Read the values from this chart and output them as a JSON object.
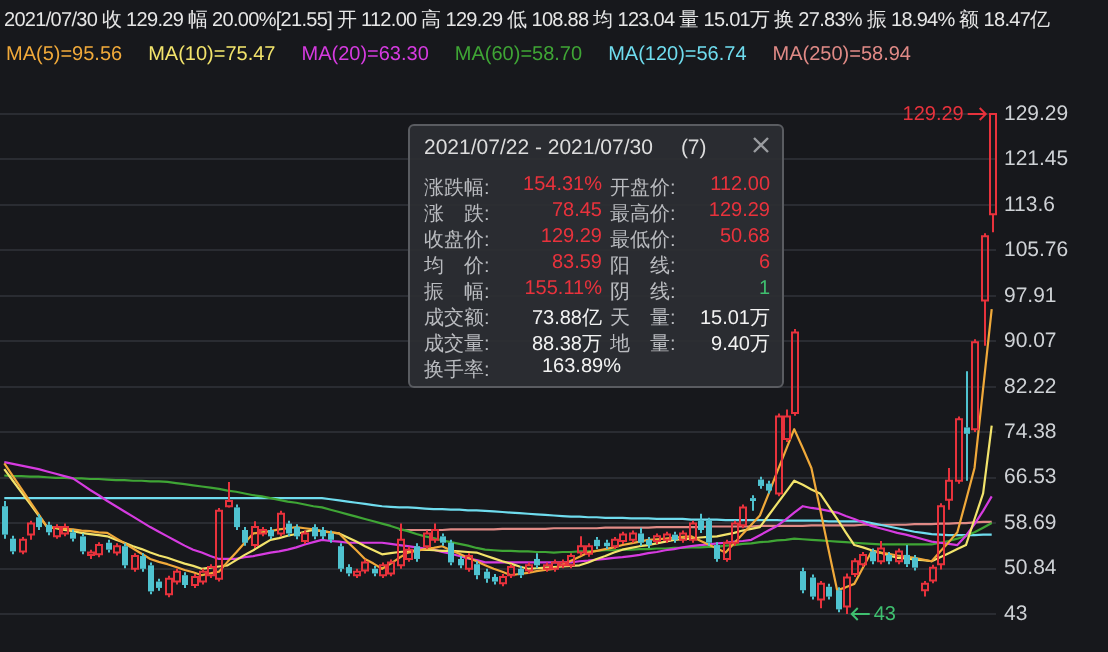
{
  "chart_data": {
    "type": "candlestick",
    "categories": [
      null,
      null,
      null,
      null,
      null,
      null,
      null,
      null,
      null,
      null,
      null,
      null,
      null,
      null,
      null,
      null,
      null,
      null,
      null,
      null,
      null,
      null,
      null,
      null,
      null,
      null,
      null,
      null,
      null,
      null,
      null,
      null,
      null,
      null,
      null,
      null,
      null,
      null,
      null,
      null,
      null,
      null,
      null,
      null,
      null,
      null,
      null,
      null,
      null,
      null,
      null,
      null,
      null,
      null,
      null,
      null,
      null,
      null,
      null,
      null,
      null,
      null,
      null,
      null,
      null,
      null,
      null,
      null,
      null,
      null,
      null,
      null,
      null,
      null,
      null,
      null,
      null,
      null,
      null,
      null,
      null,
      null,
      null,
      null,
      null,
      null,
      null,
      null,
      null,
      null,
      null,
      null,
      null,
      null,
      null,
      null,
      null,
      null,
      null,
      null,
      null,
      null,
      null,
      null,
      null,
      null,
      null,
      null,
      null,
      null,
      null,
      null,
      null,
      null,
      null,
      null
    ],
    "ylim": [
      43,
      129.29
    ],
    "yticks": [
      43,
      50.84,
      58.69,
      66.53,
      74.38,
      82.22,
      90.07,
      97.91,
      105.76,
      113.6,
      121.45,
      129.29
    ],
    "grid": "y",
    "tick_labels": "y",
    "legend": "top left",
    "annotations": [
      "2021/07/30 收 129.29 幅 20.00%[21.55] 开 112.00 高 129.29 低 108.88 均 123.04 量 15.01万 换 27.83% 振 18.94% 额 18.47亿",
      "2021/07/22 - 2021/07/30",
      "(7)",
      "涨跌幅:",
      "154.31%",
      "开盘价:",
      "112.00",
      "涨　跌:",
      "78.45",
      "最高价:",
      "129.29",
      "收盘价:",
      "129.29",
      "最低价:",
      "50.68",
      "均　价:",
      "83.59",
      "阳　线:",
      "6",
      "振　幅:",
      "155.11%",
      "阴　线:",
      "1",
      "成交额:",
      "73.88亿",
      "天　量:",
      "15.01万",
      "成交量:",
      "88.38万",
      "地　量:",
      "9.40万",
      "换手率:",
      "163.89%",
      "129.29",
      "43"
    ],
    "series": [
      {
        "type": "candlestick",
        "ohlc": [
          [
            61.6,
            62.5,
            56.0,
            56.7
          ],
          [
            56.0,
            56.5,
            53.3,
            53.8
          ],
          [
            53.8,
            56.3,
            53.3,
            55.8
          ],
          [
            56.7,
            59.1,
            55.8,
            58.6
          ],
          [
            59.7,
            60.2,
            57.5,
            58.0
          ],
          [
            58.4,
            58.9,
            56.6,
            57.1
          ],
          [
            56.4,
            58.5,
            56.0,
            58.0
          ],
          [
            56.9,
            58.6,
            56.4,
            58.0
          ],
          [
            57.1,
            57.6,
            55.5,
            56.0
          ],
          [
            56.4,
            56.9,
            53.3,
            53.8
          ],
          [
            53.2,
            54.1,
            52.5,
            53.6
          ],
          [
            53.3,
            55.4,
            52.8,
            54.9
          ],
          [
            55.3,
            55.8,
            53.6,
            54.1
          ],
          [
            53.6,
            55.2,
            53.1,
            54.7
          ],
          [
            54.7,
            55.2,
            50.9,
            51.4
          ],
          [
            50.8,
            53.5,
            50.3,
            53.0
          ],
          [
            53.0,
            53.5,
            50.3,
            50.8
          ],
          [
            51.4,
            51.9,
            46.4,
            46.9
          ],
          [
            48.6,
            49.1,
            47.0,
            47.5
          ],
          [
            46.4,
            49.6,
            45.9,
            49.1
          ],
          [
            48.6,
            50.8,
            48.1,
            50.3
          ],
          [
            49.7,
            50.2,
            47.5,
            48.0
          ],
          [
            48.0,
            49.9,
            47.5,
            49.4
          ],
          [
            48.6,
            50.8,
            48.1,
            50.3
          ],
          [
            49.7,
            51.6,
            49.2,
            51.1
          ],
          [
            49.1,
            61.3,
            48.6,
            60.8
          ],
          [
            61.6,
            65.8,
            61.4,
            62.5
          ],
          [
            61.4,
            61.9,
            57.5,
            58.0
          ],
          [
            57.5,
            58.0,
            54.8,
            55.3
          ],
          [
            54.9,
            59.0,
            54.4,
            58.0
          ],
          [
            56.9,
            58.0,
            56.4,
            57.5
          ],
          [
            57.5,
            58.0,
            55.9,
            56.4
          ],
          [
            56.9,
            60.8,
            56.4,
            60.3
          ],
          [
            58.6,
            59.1,
            56.4,
            56.9
          ],
          [
            58.0,
            58.5,
            55.9,
            56.4
          ],
          [
            55.6,
            57.4,
            55.1,
            56.9
          ],
          [
            58.0,
            58.5,
            55.9,
            56.4
          ],
          [
            57.5,
            58.0,
            55.9,
            56.4
          ],
          [
            56.9,
            57.4,
            55.3,
            55.8
          ],
          [
            54.7,
            55.2,
            50.3,
            50.8
          ],
          [
            51.1,
            51.6,
            49.5,
            50.0
          ],
          [
            49.7,
            50.8,
            49.2,
            50.3
          ],
          [
            50.5,
            52.4,
            50.0,
            51.9
          ],
          [
            50.8,
            51.3,
            49.5,
            50.0
          ],
          [
            49.7,
            51.9,
            49.2,
            51.4
          ],
          [
            50.0,
            52.4,
            49.5,
            51.9
          ],
          [
            51.4,
            58.6,
            50.8,
            55.8
          ],
          [
            52.5,
            54.6,
            52.0,
            54.1
          ],
          [
            54.7,
            55.2,
            52.0,
            52.5
          ],
          [
            54.7,
            57.4,
            54.2,
            56.9
          ],
          [
            55.8,
            58.6,
            55.3,
            57.5
          ],
          [
            56.4,
            56.9,
            54.8,
            55.3
          ],
          [
            55.3,
            55.8,
            51.4,
            51.9
          ],
          [
            52.5,
            53.0,
            50.9,
            51.4
          ],
          [
            50.8,
            53.5,
            50.3,
            53.0
          ],
          [
            51.6,
            52.1,
            49.0,
            49.7
          ],
          [
            50.3,
            50.8,
            48.4,
            49.1
          ],
          [
            49.4,
            49.9,
            48.1,
            48.6
          ],
          [
            48.3,
            49.9,
            47.8,
            49.4
          ],
          [
            49.7,
            51.6,
            49.2,
            51.1
          ],
          [
            50.8,
            51.3,
            49.2,
            49.7
          ],
          [
            50.5,
            51.9,
            50.0,
            51.4
          ],
          [
            52.5,
            53.5,
            50.9,
            51.4
          ],
          [
            50.8,
            51.9,
            50.3,
            51.4
          ],
          [
            50.8,
            52.4,
            50.3,
            51.9
          ],
          [
            51.4,
            52.4,
            50.9,
            51.9
          ],
          [
            51.4,
            53.5,
            50.9,
            53.0
          ],
          [
            53.6,
            56.4,
            53.1,
            54.7
          ],
          [
            53.4,
            55.2,
            52.9,
            54.7
          ],
          [
            55.8,
            56.3,
            54.2,
            54.7
          ],
          [
            55.3,
            55.8,
            54.2,
            54.7
          ],
          [
            54.7,
            56.3,
            54.2,
            55.8
          ],
          [
            55.6,
            57.2,
            55.1,
            56.7
          ],
          [
            55.8,
            57.4,
            55.3,
            56.9
          ],
          [
            56.9,
            57.9,
            54.8,
            55.3
          ],
          [
            55.8,
            56.3,
            54.4,
            54.9
          ],
          [
            55.6,
            56.9,
            55.1,
            56.4
          ],
          [
            55.8,
            57.2,
            55.3,
            56.7
          ],
          [
            56.7,
            57.2,
            55.3,
            55.8
          ],
          [
            55.8,
            57.4,
            55.3,
            56.9
          ],
          [
            55.8,
            59.1,
            55.3,
            58.6
          ],
          [
            59.1,
            60.3,
            57.0,
            57.5
          ],
          [
            59.1,
            59.6,
            54.8,
            55.3
          ],
          [
            54.9,
            55.4,
            52.0,
            52.5
          ],
          [
            52.5,
            55.8,
            52.0,
            55.3
          ],
          [
            55.3,
            59.1,
            54.8,
            58.6
          ],
          [
            58.3,
            61.9,
            57.8,
            61.4
          ],
          [
            63.0,
            63.5,
            60.8,
            62.5
          ],
          [
            66.2,
            66.7,
            64.6,
            65.1
          ],
          [
            65.5,
            66.0,
            63.8,
            64.3
          ],
          [
            63.8,
            77.6,
            63.3,
            77.1
          ],
          [
            73.2,
            78.3,
            72.7,
            77.1
          ],
          [
            77.7,
            92.2,
            77.2,
            91.6
          ],
          [
            50.4,
            51.0,
            46.6,
            47.1
          ],
          [
            49.3,
            49.8,
            45.5,
            46.0
          ],
          [
            45.5,
            48.7,
            44.0,
            48.2
          ],
          [
            47.7,
            48.2,
            45.5,
            46.0
          ],
          [
            47.1,
            47.6,
            43.3,
            43.8
          ],
          [
            44.3,
            50.0,
            43.0,
            49.3
          ],
          [
            49.9,
            52.6,
            49.4,
            52.1
          ],
          [
            51.6,
            53.7,
            51.1,
            53.2
          ],
          [
            53.8,
            54.3,
            51.6,
            52.1
          ],
          [
            52.1,
            55.6,
            51.6,
            54.3
          ],
          [
            53.2,
            53.7,
            51.6,
            52.1
          ],
          [
            52.1,
            54.3,
            51.6,
            53.8
          ],
          [
            53.2,
            54.9,
            51.1,
            51.6
          ],
          [
            52.7,
            53.2,
            50.5,
            51.0
          ],
          [
            47.1,
            48.7,
            46.0,
            48.2
          ],
          [
            48.8,
            51.5,
            48.3,
            51.0
          ],
          [
            51.6,
            62.1,
            50.68,
            61.6
          ],
          [
            62.7,
            68.2,
            61.0,
            66.0
          ],
          [
            66.0,
            77.1,
            65.5,
            76.6
          ],
          [
            75.2,
            84.9,
            66.0,
            74.1
          ],
          [
            74.9,
            90.4,
            74.4,
            89.9
          ],
          [
            97.1,
            108.7,
            89.3,
            108.2
          ],
          [
            112.0,
            129.29,
            108.88,
            129.29
          ]
        ],
        "colors": [
          "#4fc3d0",
          "#4fc3d0",
          "#e8323c",
          "#e8323c",
          "#4fc3d0",
          "#4fc3d0",
          "#e8323c",
          "#e8323c",
          "#4fc3d0",
          "#4fc3d0",
          "#e8323c",
          "#e8323c",
          "#4fc3d0",
          "#e8323c",
          "#4fc3d0",
          "#e8323c",
          "#4fc3d0",
          "#4fc3d0",
          "#4fc3d0",
          "#e8323c",
          "#e8323c",
          "#4fc3d0",
          "#e8323c",
          "#e8323c",
          "#e8323c",
          "#e8323c",
          "#e8323c",
          "#4fc3d0",
          "#4fc3d0",
          "#e8323c",
          "#e8323c",
          "#4fc3d0",
          "#e8323c",
          "#4fc3d0",
          "#4fc3d0",
          "#e8323c",
          "#4fc3d0",
          "#4fc3d0",
          "#4fc3d0",
          "#4fc3d0",
          "#4fc3d0",
          "#e8323c",
          "#e8323c",
          "#4fc3d0",
          "#e8323c",
          "#e8323c",
          "#e8323c",
          "#e8323c",
          "#4fc3d0",
          "#e8323c",
          "#e8323c",
          "#4fc3d0",
          "#4fc3d0",
          "#4fc3d0",
          "#e8323c",
          "#4fc3d0",
          "#4fc3d0",
          "#4fc3d0",
          "#e8323c",
          "#e8323c",
          "#4fc3d0",
          "#e8323c",
          "#4fc3d0",
          "#e8323c",
          "#e8323c",
          "#e8323c",
          "#e8323c",
          "#e8323c",
          "#e8323c",
          "#4fc3d0",
          "#4fc3d0",
          "#e8323c",
          "#e8323c",
          "#e8323c",
          "#4fc3d0",
          "#4fc3d0",
          "#e8323c",
          "#e8323c",
          "#4fc3d0",
          "#e8323c",
          "#e8323c",
          "#4fc3d0",
          "#4fc3d0",
          "#4fc3d0",
          "#e8323c",
          "#e8323c",
          "#e8323c",
          "#4fc3d0",
          "#4fc3d0",
          "#4fc3d0",
          "#e8323c",
          "#e8323c",
          "#e8323c",
          "#4fc3d0",
          "#4fc3d0",
          "#e8323c",
          "#4fc3d0",
          "#4fc3d0",
          "#e8323c",
          "#e8323c",
          "#e8323c",
          "#4fc3d0",
          "#e8323c",
          "#4fc3d0",
          "#e8323c",
          "#4fc3d0",
          "#4fc3d0",
          "#e8323c",
          "#e8323c",
          "#e8323c",
          "#e8323c",
          "#e8323c",
          "#4fc3d0",
          "#e8323c",
          "#e8323c",
          "#e8323c"
        ]
      },
      {
        "type": "line",
        "name": "MA(5)=95.56",
        "color": "#f0a93a",
        "values": [
          69.0,
          66.8,
          64.6,
          62.4,
          60.2,
          58.0,
          57.9,
          57.7,
          57.6,
          57.4,
          57.3,
          57.1,
          57.0,
          56.1,
          55.2,
          54.3,
          53.4,
          52.5,
          52.0,
          51.6,
          51.1,
          50.6,
          50.2,
          49.7,
          50.0,
          50.3,
          52.0,
          53.6,
          55.3,
          56.9,
          57.1,
          57.3,
          57.6,
          57.8,
          58.0,
          57.8,
          57.6,
          57.3,
          57.1,
          56.9,
          55.4,
          54.0,
          52.5,
          51.7,
          50.8,
          51.7,
          52.7,
          53.6,
          53.9,
          54.2,
          54.4,
          54.7,
          54.0,
          53.4,
          52.7,
          52.1,
          51.4,
          50.8,
          50.3,
          49.7,
          49.9,
          50.1,
          50.4,
          50.6,
          50.8,
          51.5,
          52.2,
          52.9,
          53.6,
          53.9,
          54.2,
          54.5,
          54.9,
          55.2,
          55.5,
          55.8,
          55.9,
          56.0,
          56.2,
          56.3,
          56.4,
          55.7,
          55.0,
          54.3,
          53.6,
          55.2,
          56.8,
          58.4,
          60.0,
          63.7,
          67.5,
          71.2,
          74.9,
          71.6,
          68.2,
          61.2,
          54.1,
          47.1,
          47.6,
          48.2,
          51.0,
          53.8,
          53.6,
          53.4,
          53.1,
          52.9,
          52.7,
          52.4,
          52.1,
          53.8,
          55.4,
          57.1,
          62.6,
          68.2,
          81.9,
          95.6
        ]
      },
      {
        "type": "line",
        "name": "MA(10)=75.47",
        "color": "#f2e36b",
        "values": [
          68.0,
          66.0,
          64.0,
          62.0,
          60.0,
          58.0,
          57.8,
          57.5,
          57.3,
          57.0,
          56.8,
          56.6,
          56.4,
          55.8,
          55.3,
          54.7,
          54.2,
          53.6,
          53.1,
          52.7,
          52.2,
          51.7,
          51.3,
          50.8,
          51.0,
          51.2,
          51.4,
          52.3,
          53.2,
          54.0,
          54.9,
          55.8,
          56.1,
          56.5,
          56.8,
          57.2,
          57.5,
          57.3,
          57.1,
          56.9,
          56.2,
          55.5,
          54.7,
          54.0,
          53.3,
          53.5,
          53.7,
          53.8,
          54.0,
          54.1,
          54.0,
          53.9,
          53.9,
          53.8,
          53.7,
          53.6,
          53.1,
          52.6,
          52.1,
          51.7,
          51.2,
          50.8,
          50.9,
          51.0,
          51.1,
          51.2,
          51.3,
          51.4,
          51.9,
          52.5,
          53.0,
          53.6,
          54.1,
          54.4,
          54.7,
          54.9,
          55.2,
          55.5,
          55.8,
          55.9,
          56.0,
          56.2,
          56.3,
          56.4,
          56.7,
          57.0,
          57.4,
          57.7,
          58.0,
          60.0,
          62.0,
          64.0,
          66.0,
          65.3,
          64.5,
          63.8,
          61.6,
          59.4,
          57.1,
          54.9,
          54.5,
          54.0,
          53.6,
          53.1,
          52.7,
          52.6,
          52.4,
          52.3,
          52.1,
          52.8,
          53.5,
          54.2,
          54.9,
          59.4,
          63.8,
          75.5
        ]
      },
      {
        "type": "line",
        "name": "MA(20)=63.30",
        "color": "#d63be0",
        "values": [
          69.2,
          68.9,
          68.6,
          68.3,
          68.0,
          67.6,
          67.2,
          66.8,
          66.4,
          65.4,
          64.4,
          63.5,
          62.5,
          61.6,
          60.7,
          59.8,
          58.9,
          58.0,
          57.2,
          56.4,
          55.6,
          54.8,
          54.1,
          53.6,
          53.0,
          52.5,
          52.5,
          52.5,
          52.8,
          53.0,
          53.3,
          53.6,
          53.8,
          54.1,
          54.5,
          55.0,
          55.4,
          55.8,
          55.6,
          55.5,
          55.3,
          55.3,
          55.3,
          55.3,
          55.3,
          55.1,
          54.9,
          54.7,
          54.5,
          54.3,
          54.1,
          53.7,
          53.4,
          53.0,
          52.6,
          52.3,
          51.9,
          51.9,
          51.9,
          51.9,
          51.9,
          51.9,
          51.9,
          51.9,
          51.9,
          51.9,
          51.9,
          52.1,
          52.2,
          52.4,
          52.5,
          52.7,
          52.8,
          53.0,
          53.2,
          53.5,
          53.7,
          54.0,
          54.2,
          54.5,
          54.7,
          54.9,
          55.0,
          55.2,
          55.3,
          55.5,
          55.6,
          55.8,
          56.6,
          57.4,
          58.2,
          59.3,
          60.5,
          61.6,
          61.3,
          61.1,
          60.8,
          60.5,
          59.9,
          59.4,
          58.8,
          58.2,
          57.8,
          57.4,
          57.0,
          56.7,
          56.3,
          55.9,
          55.5,
          55.3,
          55.1,
          54.9,
          56.5,
          58.5,
          60.8,
          63.3
        ]
      },
      {
        "type": "line",
        "name": "MA(60)=58.70",
        "color": "#3fa535",
        "values": [
          66.9,
          66.8,
          66.8,
          66.7,
          66.7,
          66.6,
          66.5,
          66.5,
          66.4,
          66.4,
          66.3,
          66.3,
          66.2,
          66.1,
          66.1,
          66.0,
          66.0,
          65.9,
          65.9,
          65.8,
          65.6,
          65.4,
          65.2,
          65.0,
          64.8,
          64.6,
          64.3,
          64.1,
          63.8,
          63.5,
          63.3,
          63.0,
          62.7,
          62.4,
          62.2,
          61.9,
          61.6,
          61.4,
          61.0,
          60.6,
          60.2,
          59.8,
          59.4,
          59.0,
          58.6,
          58.2,
          57.7,
          57.3,
          56.8,
          56.4,
          56.1,
          55.7,
          55.4,
          55.1,
          54.8,
          54.4,
          54.1,
          54.0,
          53.9,
          53.9,
          53.8,
          53.8,
          53.7,
          53.7,
          53.6,
          53.7,
          53.7,
          53.8,
          53.8,
          53.9,
          54.0,
          54.0,
          54.1,
          54.1,
          54.2,
          54.2,
          54.3,
          54.3,
          54.4,
          54.4,
          54.5,
          54.5,
          54.6,
          54.6,
          54.8,
          54.9,
          55.1,
          55.2,
          55.4,
          55.5,
          55.7,
          55.8,
          56.0,
          55.9,
          55.8,
          55.7,
          55.6,
          55.5,
          55.4,
          55.3,
          55.2,
          55.1,
          55.0,
          55.0,
          55.0,
          55.0,
          55.0,
          55.0,
          55.0,
          55.3,
          55.6,
          56.0,
          56.5,
          57.1,
          57.9,
          58.7
        ]
      },
      {
        "type": "line",
        "name": "MA(120)=56.74",
        "color": "#6fdcee",
        "values": [
          63.0,
          63.0,
          63.0,
          63.0,
          63.0,
          63.0,
          63.0,
          63.0,
          63.0,
          63.0,
          63.0,
          63.0,
          63.0,
          63.0,
          63.0,
          63.0,
          63.0,
          63.0,
          63.0,
          63.0,
          63.0,
          63.0,
          63.0,
          63.0,
          63.0,
          63.0,
          63.0,
          63.0,
          63.0,
          63.0,
          63.0,
          63.0,
          63.0,
          63.0,
          63.0,
          63.0,
          63.0,
          63.0,
          62.8,
          62.6,
          62.4,
          62.2,
          62.0,
          61.8,
          61.6,
          61.5,
          61.4,
          61.4,
          61.3,
          61.2,
          61.1,
          61.1,
          61.0,
          61.0,
          60.9,
          60.9,
          60.8,
          60.7,
          60.6,
          60.5,
          60.4,
          60.3,
          60.2,
          60.1,
          60.0,
          59.9,
          59.8,
          59.8,
          59.7,
          59.7,
          59.6,
          59.6,
          59.6,
          59.5,
          59.5,
          59.5,
          59.4,
          59.4,
          59.4,
          59.4,
          59.3,
          59.3,
          59.3,
          59.3,
          59.2,
          59.2,
          59.2,
          59.2,
          59.2,
          59.2,
          59.2,
          59.1,
          59.1,
          59.1,
          59.1,
          59.1,
          59.0,
          59.0,
          59.0,
          59.0,
          59.0,
          58.7,
          58.4,
          58.1,
          57.8,
          57.5,
          57.2,
          57.0,
          56.8,
          56.7,
          56.6,
          56.6,
          56.6,
          56.6,
          56.7,
          56.7
        ]
      },
      {
        "type": "line",
        "name": "MA(250)=58.94",
        "color": "#e08a86",
        "values": [
          null,
          null,
          null,
          null,
          null,
          null,
          null,
          null,
          null,
          null,
          null,
          null,
          null,
          null,
          null,
          null,
          null,
          null,
          null,
          null,
          null,
          null,
          null,
          null,
          null,
          null,
          null,
          null,
          null,
          null,
          null,
          null,
          null,
          null,
          null,
          null,
          null,
          null,
          null,
          null,
          null,
          null,
          null,
          null,
          null,
          null,
          57.5,
          57.5,
          57.5,
          57.5,
          57.5,
          57.5,
          57.6,
          57.6,
          57.6,
          57.6,
          57.6,
          57.6,
          57.7,
          57.7,
          57.7,
          57.7,
          57.7,
          57.7,
          57.8,
          57.8,
          57.8,
          57.8,
          57.8,
          57.8,
          57.9,
          57.9,
          57.9,
          57.9,
          57.9,
          57.9,
          58.0,
          58.0,
          58.0,
          58.0,
          58.0,
          58.0,
          58.1,
          58.1,
          58.1,
          58.1,
          58.1,
          58.1,
          58.2,
          58.2,
          58.2,
          58.2,
          58.2,
          58.2,
          58.3,
          58.3,
          58.3,
          58.3,
          58.3,
          58.3,
          58.4,
          58.4,
          58.4,
          58.4,
          58.4,
          58.4,
          58.5,
          58.5,
          58.5,
          58.6,
          58.6,
          58.7,
          58.7,
          58.8,
          58.9,
          58.9
        ]
      }
    ]
  }
}
